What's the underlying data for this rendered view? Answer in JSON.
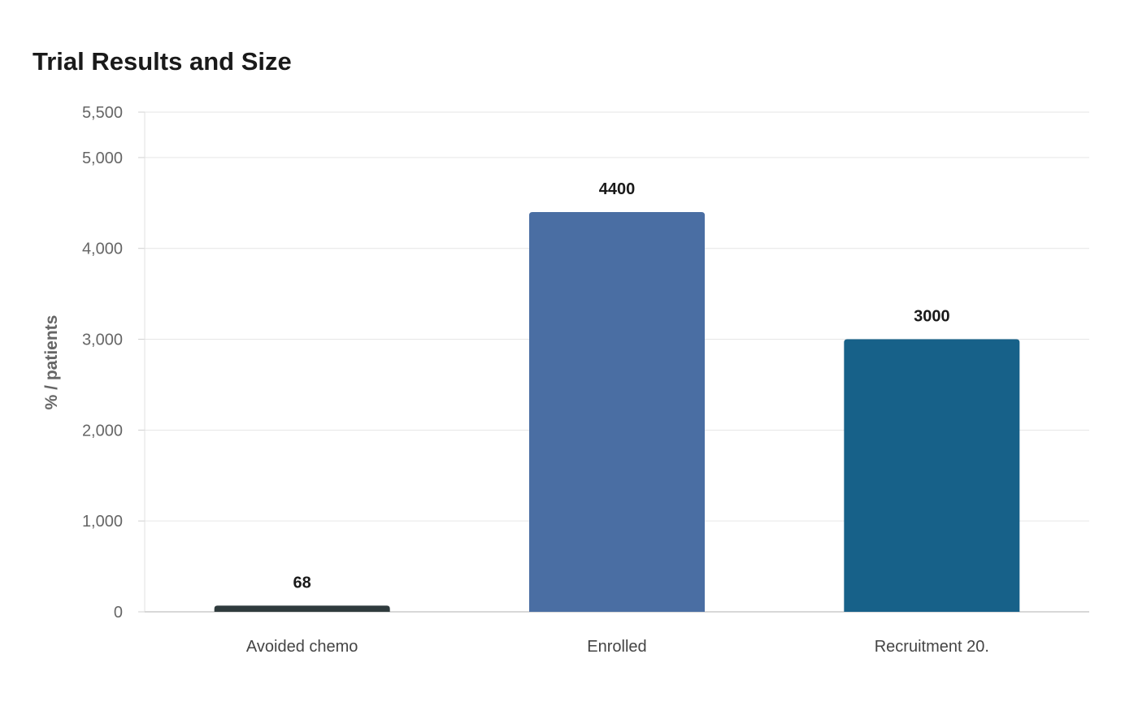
{
  "chart_data": {
    "type": "bar",
    "title": "Trial Results and Size",
    "xlabel": "",
    "ylabel": "% / patients",
    "categories": [
      "Avoided chemo",
      "Enrolled",
      "Recruitment 20."
    ],
    "values": [
      68,
      4400,
      3000
    ],
    "value_labels": [
      "68",
      "4400",
      "3000"
    ],
    "colors": [
      "#2f3b3d",
      "#4a6ea3",
      "#176189"
    ],
    "ylim": [
      0,
      5500
    ],
    "yticks": [
      0,
      1000,
      2000,
      3000,
      4000,
      5000,
      5500
    ],
    "ytick_labels": [
      "0",
      "1,000",
      "2,000",
      "3,000",
      "4,000",
      "5,000",
      "5,500"
    ],
    "grid": true,
    "legend": "none"
  }
}
